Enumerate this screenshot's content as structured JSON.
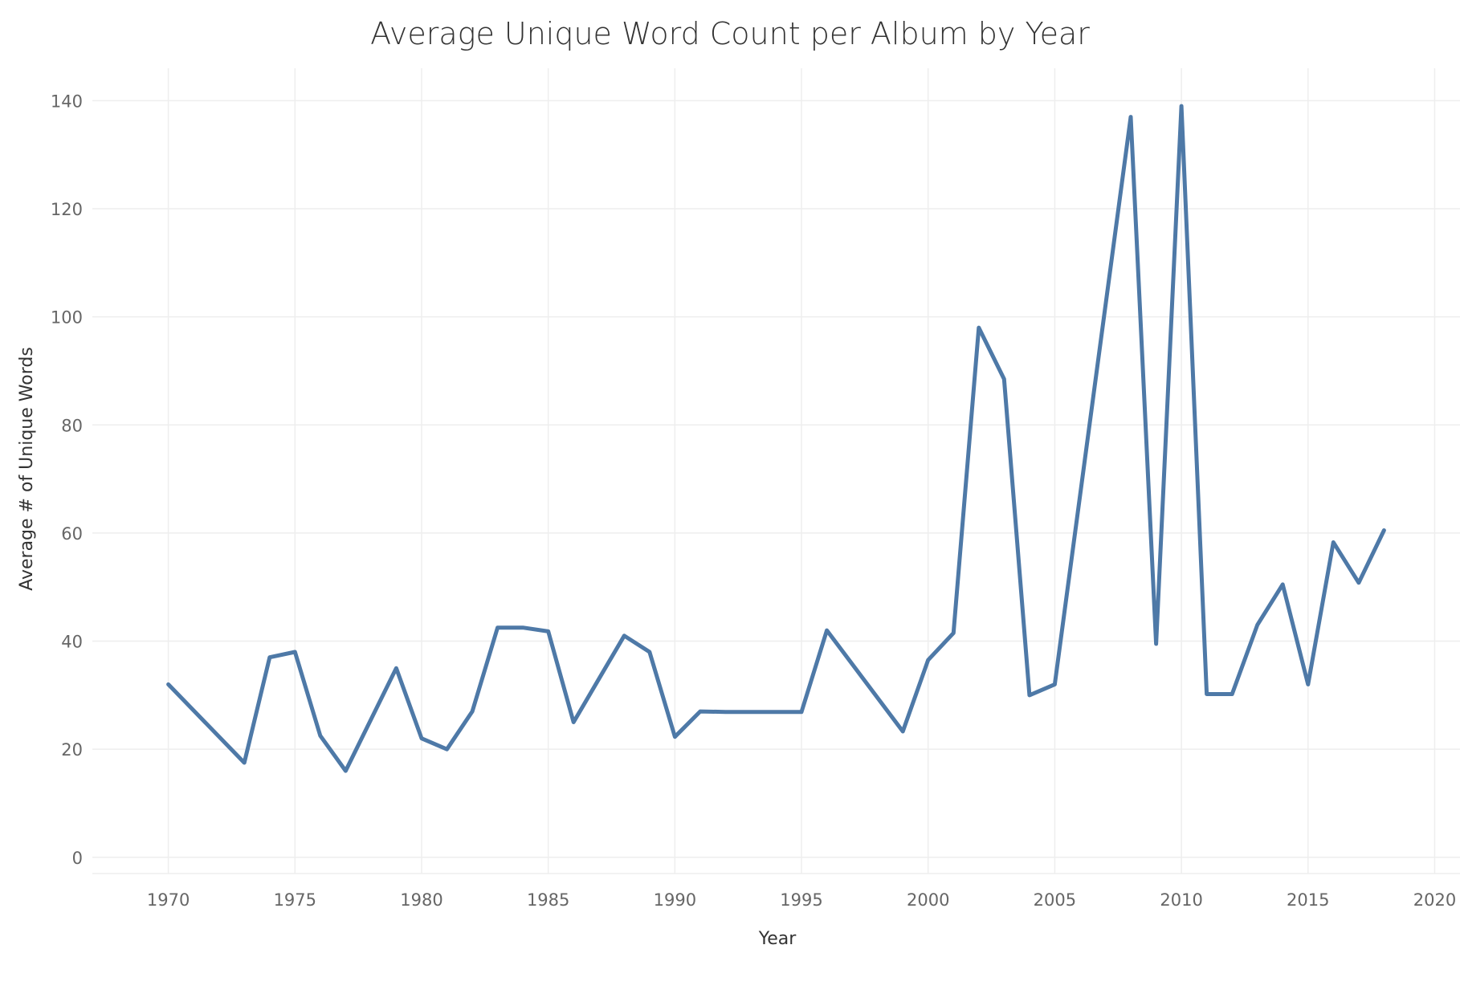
{
  "chart_data": {
    "type": "line",
    "title": "Average Unique Word Count per Album by Year",
    "xlabel": "Year",
    "ylabel": "Average # of Unique Words",
    "xlim": [
      1967,
      2021
    ],
    "ylim": [
      -3,
      146
    ],
    "xticks": [
      1970,
      1975,
      1980,
      1985,
      1990,
      1995,
      2000,
      2005,
      2010,
      2015,
      2020
    ],
    "yticks": [
      0,
      20,
      40,
      60,
      80,
      100,
      120,
      140
    ],
    "grid": true,
    "legend": "none",
    "color": "#4e79a7",
    "series": [
      {
        "x": [
          1970,
          1973,
          1974,
          1975,
          1976,
          1977,
          1979,
          1980,
          1981,
          1982,
          1983,
          1984,
          1985,
          1986,
          1987,
          1988,
          1989,
          1990,
          1991,
          1992,
          1995,
          1996,
          1999,
          2000,
          2001,
          2002,
          2003,
          2004,
          2005,
          2008,
          2009,
          2010,
          2011,
          2012,
          2013,
          2014,
          2015,
          2016,
          2017,
          2018
        ],
        "y": [
          32,
          17.5,
          37,
          38,
          22.5,
          16,
          35,
          22,
          20,
          27,
          42.5,
          42.5,
          41.8,
          25,
          33,
          41,
          38,
          22.3,
          27,
          26.9,
          26.9,
          42,
          23.3,
          36.5,
          41.5,
          98,
          88.5,
          30,
          32,
          137,
          39.5,
          139,
          30.2,
          30.2,
          43,
          50.5,
          32,
          58.3,
          50.8,
          60.5
        ]
      }
    ]
  }
}
